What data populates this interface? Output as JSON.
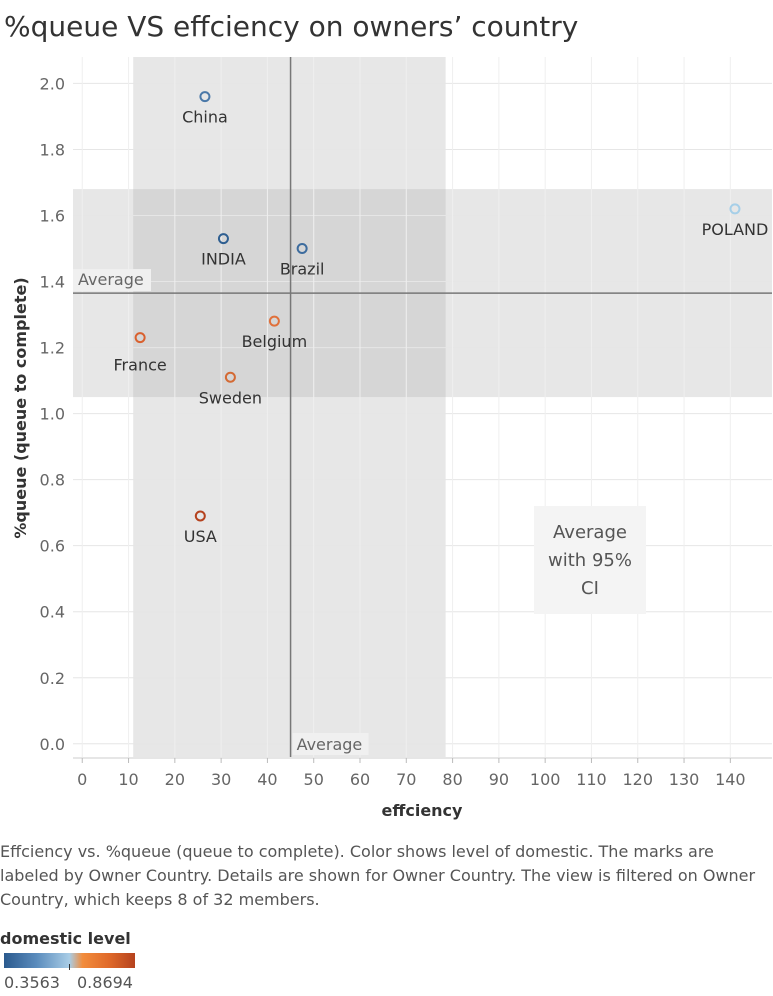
{
  "title": "%queue VS effciency on owners’ country",
  "caption": "Effciency vs. %queue (queue to complete).  Color shows level of domestic.  The marks are labeled by Owner Country.  Details are shown for Owner Country. The view is filtered on Owner Country, which keeps 8 of 32 members.",
  "legend": {
    "title": "domestic level",
    "min_label": "0.3563",
    "max_label": "0.8694"
  },
  "chart_data": {
    "type": "scatter",
    "title": "%queue VS effciency on owners’ country",
    "xlabel": "effciency",
    "ylabel": "%queue (queue to complete)",
    "xlim": [
      -2,
      149
    ],
    "ylim": [
      -0.04,
      2.08
    ],
    "xticks": [
      0,
      10,
      20,
      30,
      40,
      50,
      60,
      70,
      80,
      90,
      100,
      110,
      120,
      130,
      140
    ],
    "yticks": [
      0.0,
      0.2,
      0.4,
      0.6,
      0.8,
      1.0,
      1.2,
      1.4,
      1.6,
      1.8,
      2.0
    ],
    "grid": true,
    "points": [
      {
        "label": "China",
        "x": 26.5,
        "y": 1.96,
        "color": "#4a78a8"
      },
      {
        "label": "INDIA",
        "x": 30.5,
        "y": 1.53,
        "color": "#2f5f91"
      },
      {
        "label": "Brazil",
        "x": 47.5,
        "y": 1.5,
        "color": "#3d6c9e"
      },
      {
        "label": "POLAND",
        "x": 141,
        "y": 1.62,
        "color": "#a6cfe8"
      },
      {
        "label": "Belgium",
        "x": 41.5,
        "y": 1.28,
        "color": "#e0703a"
      },
      {
        "label": "France",
        "x": 12.5,
        "y": 1.23,
        "color": "#d9602e"
      },
      {
        "label": "Sweden",
        "x": 32,
        "y": 1.11,
        "color": "#d46a34"
      },
      {
        "label": "USA",
        "x": 25.5,
        "y": 0.69,
        "color": "#b5421e"
      }
    ],
    "reference_lines": {
      "x_average": 45,
      "y_average": 1.365,
      "x_average_label": "Average",
      "y_average_label": "Average"
    },
    "bands": {
      "x_ci": [
        11,
        78.5
      ],
      "y_ci": [
        1.05,
        1.68
      ]
    },
    "annotation": "Average with 95% CI"
  }
}
